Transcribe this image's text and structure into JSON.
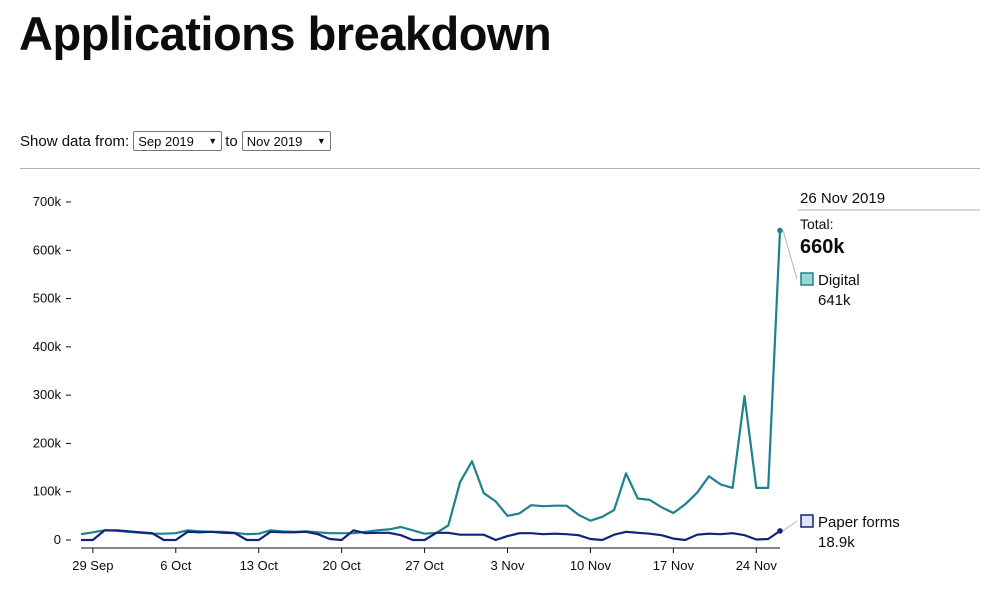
{
  "page": {
    "title": "Applications breakdown"
  },
  "filter": {
    "label": "Show data from:",
    "from_value": "Sep 2019",
    "to_label": "to",
    "to_value": "Nov 2019"
  },
  "tooltip": {
    "date": "26 Nov 2019",
    "total_label": "Total:",
    "total_value": "660k"
  },
  "legend": [
    {
      "name": "Digital",
      "value_label": "641k",
      "color": "#28a197",
      "stroke": "#1d8190"
    },
    {
      "name": "Paper forms",
      "value_label": "18.9k",
      "color": "#b6c0e8",
      "stroke": "#12237a"
    }
  ],
  "chart_data": {
    "type": "line",
    "title": "",
    "xlabel": "",
    "ylabel": "",
    "ylim": [
      0,
      700000
    ],
    "yticks": [
      0,
      100000,
      200000,
      300000,
      400000,
      500000,
      600000,
      700000
    ],
    "ytick_labels": [
      "0",
      "100k",
      "200k",
      "300k",
      "400k",
      "500k",
      "600k",
      "700k"
    ],
    "xtick_labels": [
      "29 Sep",
      "6 Oct",
      "13 Oct",
      "20 Oct",
      "27 Oct",
      "3 Nov",
      "10 Nov",
      "17 Nov",
      "24 Nov"
    ],
    "xtick_dates": [
      "2019-09-29",
      "2019-10-06",
      "2019-10-13",
      "2019-10-20",
      "2019-10-27",
      "2019-11-03",
      "2019-11-10",
      "2019-11-17",
      "2019-11-24"
    ],
    "x": [
      "2019-09-28",
      "2019-09-29",
      "2019-09-30",
      "2019-10-01",
      "2019-10-02",
      "2019-10-03",
      "2019-10-04",
      "2019-10-05",
      "2019-10-06",
      "2019-10-07",
      "2019-10-08",
      "2019-10-09",
      "2019-10-10",
      "2019-10-11",
      "2019-10-12",
      "2019-10-13",
      "2019-10-14",
      "2019-10-15",
      "2019-10-16",
      "2019-10-17",
      "2019-10-18",
      "2019-10-19",
      "2019-10-20",
      "2019-10-21",
      "2019-10-22",
      "2019-10-23",
      "2019-10-24",
      "2019-10-25",
      "2019-10-26",
      "2019-10-27",
      "2019-10-28",
      "2019-10-29",
      "2019-10-30",
      "2019-10-31",
      "2019-11-01",
      "2019-11-02",
      "2019-11-03",
      "2019-11-04",
      "2019-11-05",
      "2019-11-06",
      "2019-11-07",
      "2019-11-08",
      "2019-11-09",
      "2019-11-10",
      "2019-11-11",
      "2019-11-12",
      "2019-11-13",
      "2019-11-14",
      "2019-11-15",
      "2019-11-16",
      "2019-11-17",
      "2019-11-18",
      "2019-11-19",
      "2019-11-20",
      "2019-11-21",
      "2019-11-22",
      "2019-11-23",
      "2019-11-24",
      "2019-11-25",
      "2019-11-26"
    ],
    "series": [
      {
        "name": "Digital",
        "values": [
          12000,
          16000,
          20000,
          19000,
          17000,
          15000,
          13000,
          13000,
          14000,
          20000,
          18000,
          17000,
          17000,
          15000,
          12000,
          13000,
          20000,
          18000,
          17000,
          18000,
          16000,
          14000,
          14000,
          14000,
          17000,
          20000,
          22000,
          27000,
          20000,
          13000,
          15000,
          30000,
          120000,
          163000,
          97000,
          80000,
          50000,
          55000,
          72000,
          70000,
          71000,
          71000,
          52000,
          40000,
          48000,
          62000,
          138000,
          86000,
          83000,
          68000,
          56000,
          74000,
          98000,
          132000,
          115000,
          108000,
          298000,
          108000,
          108000,
          641000
        ]
      },
      {
        "name": "Paper forms",
        "values": [
          0,
          0,
          20000,
          20000,
          18000,
          16000,
          14000,
          0,
          0,
          17000,
          16000,
          17000,
          15000,
          14000,
          0,
          0,
          17000,
          16000,
          16000,
          17000,
          12000,
          2000,
          0,
          20000,
          14000,
          15000,
          15000,
          10000,
          0,
          0,
          15000,
          15000,
          11000,
          11000,
          11000,
          0,
          8000,
          14000,
          14000,
          12000,
          13000,
          12000,
          10000,
          2000,
          0,
          11000,
          17000,
          15000,
          13000,
          10000,
          3000,
          0,
          11000,
          13000,
          12000,
          14000,
          10000,
          1000,
          2000,
          18900
        ]
      }
    ],
    "grid": false,
    "legend_position": "right"
  }
}
